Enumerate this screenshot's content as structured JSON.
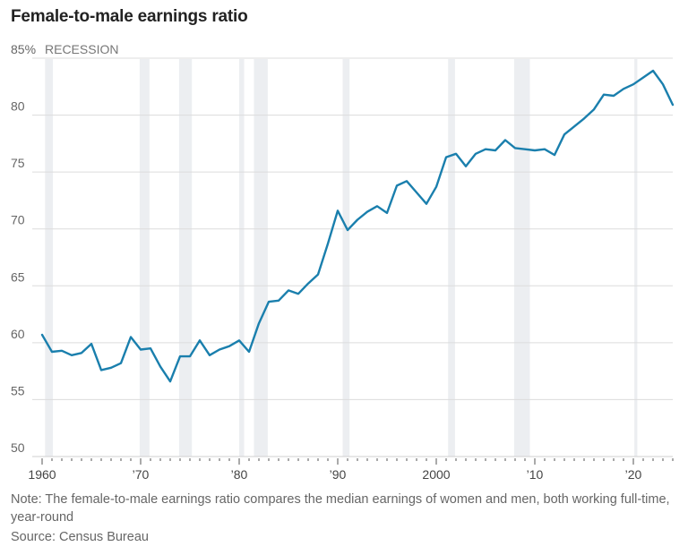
{
  "title": "Female-to-male earnings ratio",
  "note": "Note: The female-to-male earnings ratio compares the median earnings of women and men, both working full-time, year-round",
  "source": "Source: Census Bureau",
  "colors": {
    "line": "#1a7fad",
    "recession": "#eceef1",
    "grid": "#dcdcdc",
    "text": "#666666"
  },
  "chart_data": {
    "type": "line",
    "title": "Female-to-male earnings ratio",
    "xlabel": "",
    "ylabel": "",
    "legend": [
      {
        "label": "RECESSION",
        "kind": "shaded band"
      }
    ],
    "xlim": [
      1960,
      2024
    ],
    "ylim": [
      50,
      85
    ],
    "grid": true,
    "y_ticks": [
      {
        "value": 85,
        "label": "85%"
      },
      {
        "value": 80,
        "label": "80"
      },
      {
        "value": 75,
        "label": "75"
      },
      {
        "value": 70,
        "label": "70"
      },
      {
        "value": 65,
        "label": "65"
      },
      {
        "value": 60,
        "label": "60"
      },
      {
        "value": 55,
        "label": "55"
      },
      {
        "value": 50,
        "label": "50"
      }
    ],
    "x_ticks": [
      {
        "value": 1960,
        "label": "1960"
      },
      {
        "value": 1970,
        "label": "’70"
      },
      {
        "value": 1980,
        "label": "’80"
      },
      {
        "value": 1990,
        "label": "’90"
      },
      {
        "value": 2000,
        "label": "2000"
      },
      {
        "value": 2010,
        "label": "’10"
      },
      {
        "value": 2020,
        "label": "’20"
      }
    ],
    "recessions": [
      [
        1960.3,
        1961.1
      ],
      [
        1969.9,
        1970.9
      ],
      [
        1973.9,
        1975.2
      ],
      [
        1980.0,
        1980.5
      ],
      [
        1981.5,
        1982.9
      ],
      [
        1990.5,
        1991.2
      ],
      [
        2001.2,
        2001.9
      ],
      [
        2007.9,
        2009.5
      ],
      [
        2020.1,
        2020.4
      ]
    ],
    "series": [
      {
        "name": "Female-to-male earnings ratio (%)",
        "x": [
          1960,
          1961,
          1962,
          1963,
          1964,
          1965,
          1966,
          1967,
          1968,
          1969,
          1970,
          1971,
          1972,
          1973,
          1974,
          1975,
          1976,
          1977,
          1978,
          1979,
          1980,
          1981,
          1982,
          1983,
          1984,
          1985,
          1986,
          1987,
          1988,
          1989,
          1990,
          1991,
          1992,
          1993,
          1994,
          1995,
          1996,
          1997,
          1998,
          1999,
          2000,
          2001,
          2002,
          2003,
          2004,
          2005,
          2006,
          2007,
          2008,
          2009,
          2010,
          2011,
          2012,
          2013,
          2014,
          2015,
          2016,
          2017,
          2018,
          2019,
          2020,
          2021,
          2022,
          2023,
          2024
        ],
        "values": [
          60.7,
          59.2,
          59.3,
          58.9,
          59.1,
          59.9,
          57.6,
          57.8,
          58.2,
          60.5,
          59.4,
          59.5,
          57.9,
          56.6,
          58.8,
          58.8,
          60.2,
          58.9,
          59.4,
          59.7,
          60.2,
          59.2,
          61.7,
          63.6,
          63.7,
          64.6,
          64.3,
          65.2,
          66.0,
          68.7,
          71.6,
          69.9,
          70.8,
          71.5,
          72.0,
          71.4,
          73.8,
          74.2,
          73.2,
          72.2,
          73.7,
          76.3,
          76.6,
          75.5,
          76.6,
          77.0,
          76.9,
          77.8,
          77.1,
          77.0,
          76.9,
          77.0,
          76.5,
          78.3,
          79.0,
          79.7,
          80.5,
          81.8,
          81.7,
          82.3,
          82.7,
          83.3,
          83.9,
          82.7,
          80.9
        ]
      }
    ]
  }
}
